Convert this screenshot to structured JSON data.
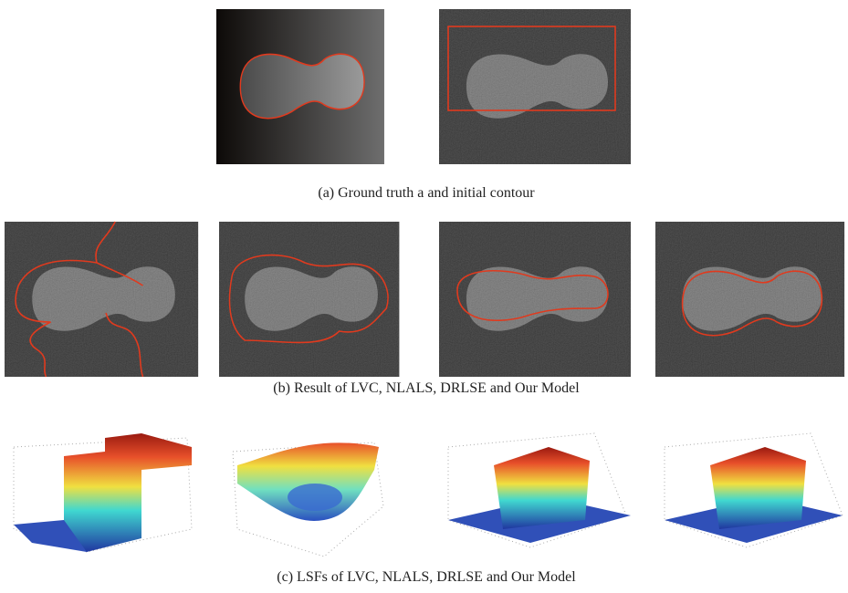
{
  "captions": {
    "a": "(a) Ground truth a and initial contour",
    "b": "(b) Result of LVC, NLALS, DRLSE and Our Model",
    "c": "(c) LSFs of  LVC, NLALS, DRLSE and Our Model"
  }
}
